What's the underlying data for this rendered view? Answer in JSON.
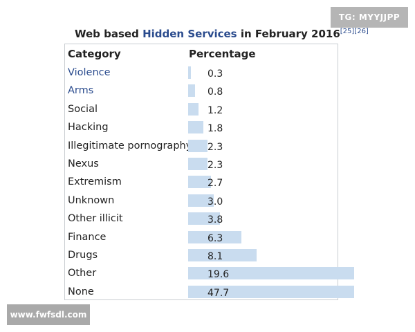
{
  "watermarks": {
    "top_right": "TG: MYYJJPP",
    "bottom_left": "www.fwfsdl.com"
  },
  "caption": {
    "prefix": "Web based ",
    "link": "Hidden Services",
    "suffix": " in February 2016",
    "refs": "[25][26]"
  },
  "table": {
    "headers": {
      "category": "Category",
      "percentage": "Percentage"
    },
    "rows": [
      {
        "category": "Violence",
        "percentage": "0.3",
        "is_link": true
      },
      {
        "category": "Arms",
        "percentage": "0.8",
        "is_link": true
      },
      {
        "category": "Social",
        "percentage": "1.2",
        "is_link": false
      },
      {
        "category": "Hacking",
        "percentage": "1.8",
        "is_link": false
      },
      {
        "category": "Illegitimate pornography",
        "percentage": "2.3",
        "is_link": false
      },
      {
        "category": "Nexus",
        "percentage": "2.3",
        "is_link": false
      },
      {
        "category": "Extremism",
        "percentage": "2.7",
        "is_link": false
      },
      {
        "category": "Unknown",
        "percentage": "3.0",
        "is_link": false
      },
      {
        "category": "Other illicit",
        "percentage": "3.8",
        "is_link": false
      },
      {
        "category": "Finance",
        "percentage": "6.3",
        "is_link": false
      },
      {
        "category": "Drugs",
        "percentage": "8.1",
        "is_link": false
      },
      {
        "category": "Other",
        "percentage": "19.6",
        "is_link": false
      },
      {
        "category": "None",
        "percentage": "47.7",
        "is_link": false
      }
    ]
  },
  "colors": {
    "link": "#2a4b8d",
    "bar": "#c9dcef",
    "border": "#c8ccd1"
  }
}
